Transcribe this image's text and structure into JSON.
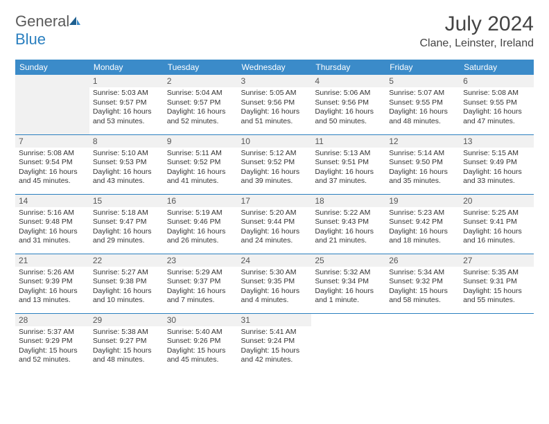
{
  "logo": {
    "text1": "General",
    "text2": "Blue"
  },
  "title": "July 2024",
  "location": "Clane, Leinster, Ireland",
  "weekdays": [
    "Sunday",
    "Monday",
    "Tuesday",
    "Wednesday",
    "Thursday",
    "Friday",
    "Saturday"
  ],
  "colors": {
    "header_bg": "#3b8bc9",
    "border": "#2a7fbf"
  },
  "weeks": [
    [
      null,
      {
        "n": "1",
        "sr": "5:03 AM",
        "ss": "9:57 PM",
        "dl": "16 hours and 53 minutes."
      },
      {
        "n": "2",
        "sr": "5:04 AM",
        "ss": "9:57 PM",
        "dl": "16 hours and 52 minutes."
      },
      {
        "n": "3",
        "sr": "5:05 AM",
        "ss": "9:56 PM",
        "dl": "16 hours and 51 minutes."
      },
      {
        "n": "4",
        "sr": "5:06 AM",
        "ss": "9:56 PM",
        "dl": "16 hours and 50 minutes."
      },
      {
        "n": "5",
        "sr": "5:07 AM",
        "ss": "9:55 PM",
        "dl": "16 hours and 48 minutes."
      },
      {
        "n": "6",
        "sr": "5:08 AM",
        "ss": "9:55 PM",
        "dl": "16 hours and 47 minutes."
      }
    ],
    [
      {
        "n": "7",
        "sr": "5:08 AM",
        "ss": "9:54 PM",
        "dl": "16 hours and 45 minutes."
      },
      {
        "n": "8",
        "sr": "5:10 AM",
        "ss": "9:53 PM",
        "dl": "16 hours and 43 minutes."
      },
      {
        "n": "9",
        "sr": "5:11 AM",
        "ss": "9:52 PM",
        "dl": "16 hours and 41 minutes."
      },
      {
        "n": "10",
        "sr": "5:12 AM",
        "ss": "9:52 PM",
        "dl": "16 hours and 39 minutes."
      },
      {
        "n": "11",
        "sr": "5:13 AM",
        "ss": "9:51 PM",
        "dl": "16 hours and 37 minutes."
      },
      {
        "n": "12",
        "sr": "5:14 AM",
        "ss": "9:50 PM",
        "dl": "16 hours and 35 minutes."
      },
      {
        "n": "13",
        "sr": "5:15 AM",
        "ss": "9:49 PM",
        "dl": "16 hours and 33 minutes."
      }
    ],
    [
      {
        "n": "14",
        "sr": "5:16 AM",
        "ss": "9:48 PM",
        "dl": "16 hours and 31 minutes."
      },
      {
        "n": "15",
        "sr": "5:18 AM",
        "ss": "9:47 PM",
        "dl": "16 hours and 29 minutes."
      },
      {
        "n": "16",
        "sr": "5:19 AM",
        "ss": "9:46 PM",
        "dl": "16 hours and 26 minutes."
      },
      {
        "n": "17",
        "sr": "5:20 AM",
        "ss": "9:44 PM",
        "dl": "16 hours and 24 minutes."
      },
      {
        "n": "18",
        "sr": "5:22 AM",
        "ss": "9:43 PM",
        "dl": "16 hours and 21 minutes."
      },
      {
        "n": "19",
        "sr": "5:23 AM",
        "ss": "9:42 PM",
        "dl": "16 hours and 18 minutes."
      },
      {
        "n": "20",
        "sr": "5:25 AM",
        "ss": "9:41 PM",
        "dl": "16 hours and 16 minutes."
      }
    ],
    [
      {
        "n": "21",
        "sr": "5:26 AM",
        "ss": "9:39 PM",
        "dl": "16 hours and 13 minutes."
      },
      {
        "n": "22",
        "sr": "5:27 AM",
        "ss": "9:38 PM",
        "dl": "16 hours and 10 minutes."
      },
      {
        "n": "23",
        "sr": "5:29 AM",
        "ss": "9:37 PM",
        "dl": "16 hours and 7 minutes."
      },
      {
        "n": "24",
        "sr": "5:30 AM",
        "ss": "9:35 PM",
        "dl": "16 hours and 4 minutes."
      },
      {
        "n": "25",
        "sr": "5:32 AM",
        "ss": "9:34 PM",
        "dl": "16 hours and 1 minute."
      },
      {
        "n": "26",
        "sr": "5:34 AM",
        "ss": "9:32 PM",
        "dl": "15 hours and 58 minutes."
      },
      {
        "n": "27",
        "sr": "5:35 AM",
        "ss": "9:31 PM",
        "dl": "15 hours and 55 minutes."
      }
    ],
    [
      {
        "n": "28",
        "sr": "5:37 AM",
        "ss": "9:29 PM",
        "dl": "15 hours and 52 minutes."
      },
      {
        "n": "29",
        "sr": "5:38 AM",
        "ss": "9:27 PM",
        "dl": "15 hours and 48 minutes."
      },
      {
        "n": "30",
        "sr": "5:40 AM",
        "ss": "9:26 PM",
        "dl": "15 hours and 45 minutes."
      },
      {
        "n": "31",
        "sr": "5:41 AM",
        "ss": "9:24 PM",
        "dl": "15 hours and 42 minutes."
      },
      null,
      null,
      null
    ]
  ],
  "labels": {
    "sunrise": "Sunrise:",
    "sunset": "Sunset:",
    "daylight": "Daylight:"
  }
}
